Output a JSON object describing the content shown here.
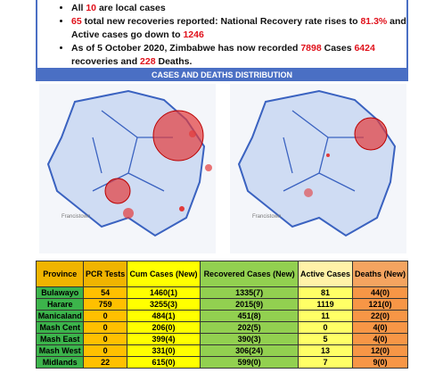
{
  "bullets": [
    [
      {
        "text": "All "
      },
      {
        "text": "10",
        "red": true
      },
      {
        "text": " are local cases"
      }
    ],
    [
      {
        "text": "65",
        "red": true
      },
      {
        "text": " total new recoveries reported: National Recovery rate rises to "
      },
      {
        "text": "81.3%",
        "red": true
      },
      {
        "text": " and Active cases go down to "
      },
      {
        "text": "1246",
        "red": true
      }
    ],
    [
      {
        "text": "As of 5 October 2020, Zimbabwe has now recorded "
      },
      {
        "text": "7898",
        "red": true
      },
      {
        "text": " Cases "
      },
      {
        "text": "6424",
        "red": true
      },
      {
        "text": " recoveries and "
      },
      {
        "text": "228",
        "red": true
      },
      {
        "text": " Deaths."
      }
    ]
  ],
  "section_title": "CASES AND DEATHS DISTRIBUTION",
  "maps": [
    {
      "place_label": "Francistown"
    },
    {
      "place_label": "Francistown"
    }
  ],
  "table": {
    "header": [
      "Province",
      "PCR Tests",
      "Cum Cases (New)",
      "Recovered Cases (New)",
      "Active Cases",
      "Deaths (New)"
    ],
    "rows": [
      [
        "Bulawayo",
        "54",
        "1460(1)",
        "1335(7)",
        "81",
        "44(0)"
      ],
      [
        "Harare",
        "759",
        "3255(3)",
        "2015(9)",
        "1119",
        "121(0)"
      ],
      [
        "Manicaland",
        "0",
        "484(1)",
        "451(8)",
        "11",
        "22(0)"
      ],
      [
        "Mash Cent",
        "0",
        "206(0)",
        "202(5)",
        "0",
        "4(0)"
      ],
      [
        "Mash East",
        "0",
        "399(4)",
        "390(3)",
        "5",
        "4(0)"
      ],
      [
        "Mash West",
        "0",
        "331(0)",
        "306(24)",
        "13",
        "12(0)"
      ],
      [
        "Midlands",
        "22",
        "615(0)",
        "599(0)",
        "7",
        "9(0)"
      ]
    ]
  }
}
